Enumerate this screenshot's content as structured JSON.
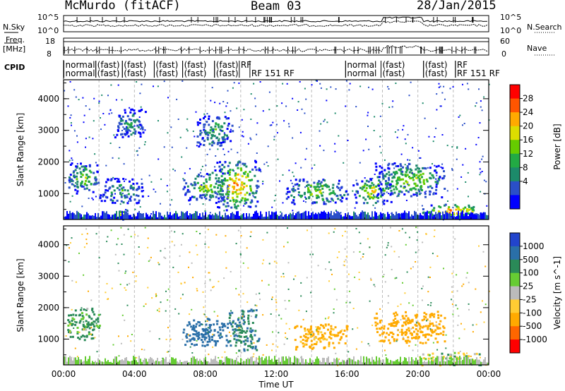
{
  "header": {
    "station": "McMurdo (fitACF)",
    "beam": "Beam 03",
    "date": "28/Jan/2015"
  },
  "status_panels": {
    "nsky_label": "N.Sky",
    "nsearch_label": "N.Search",
    "nsky_ticks": [
      "10^5",
      "10^0"
    ],
    "nsearch_ticks": [
      "10^5",
      "10^0"
    ],
    "freq_label": "Freq.",
    "freq_unit": "[MHz]",
    "freq_ticks": [
      "18",
      "8"
    ],
    "nave_label": "Nave",
    "nave_ticks": [
      "60",
      "0"
    ],
    "cpid_label": "CPID"
  },
  "cpid_rows": [
    {
      "row": 0,
      "segments": [
        {
          "hour": 0.1,
          "text": "normal"
        },
        {
          "hour": 1.9,
          "text": "(fast)"
        },
        {
          "hour": 3.4,
          "text": "(fast)"
        },
        {
          "hour": 5.2,
          "text": "(fast)"
        },
        {
          "hour": 6.8,
          "text": "(fast)"
        },
        {
          "hour": 8.6,
          "text": "(fast)"
        },
        {
          "hour": 10.0,
          "text": "RF"
        },
        {
          "hour": 16.0,
          "text": "normal"
        },
        {
          "hour": 18.0,
          "text": "(fast)"
        },
        {
          "hour": 20.4,
          "text": "(fast)"
        },
        {
          "hour": 22.2,
          "text": "RF"
        }
      ]
    },
    {
      "row": 1,
      "segments": [
        {
          "hour": 0.1,
          "text": "normal"
        },
        {
          "hour": 1.9,
          "text": "(fast)"
        },
        {
          "hour": 3.4,
          "text": "(fast)"
        },
        {
          "hour": 5.2,
          "text": "(fast)"
        },
        {
          "hour": 6.8,
          "text": "(fast)"
        },
        {
          "hour": 8.6,
          "text": "(fast)"
        },
        {
          "hour": 10.6,
          "text": "RF 151 RF"
        },
        {
          "hour": 16.0,
          "text": "normal"
        },
        {
          "hour": 18.0,
          "text": "(fast)"
        },
        {
          "hour": 20.4,
          "text": "(fast)"
        },
        {
          "hour": 22.2,
          "text": "RF 151 RF"
        }
      ]
    }
  ],
  "chart_data": [
    {
      "type": "heatmap",
      "title": "Power",
      "xlabel": "",
      "ylabel": "Slant Range [km]",
      "xlim_hours": [
        0,
        24
      ],
      "ylim": [
        180,
        4600
      ],
      "yticks": [
        1000,
        2000,
        3000,
        4000
      ],
      "colorbar_label": "Power [dB]",
      "colorbar_ticks": [
        "28",
        "24",
        "20",
        "16",
        "12",
        "8",
        "4"
      ],
      "colorbar_colors": [
        "#ff0000",
        "#ff5500",
        "#ffaa00",
        "#dddd00",
        "#66cc00",
        "#22aa44",
        "#1c8a6a",
        "#2a4fc8",
        "#0000ff"
      ],
      "series": [
        {
          "x": [
            0.2,
            2.0
          ],
          "y": [
            1000,
            2000
          ],
          "intensity": 0.55
        },
        {
          "x": [
            2.0,
            4.5
          ],
          "y": [
            700,
            1500
          ],
          "intensity": 0.4
        },
        {
          "x": [
            2.8,
            4.6
          ],
          "y": [
            2800,
            3700
          ],
          "intensity": 0.35
        },
        {
          "x": [
            6.7,
            9.3
          ],
          "y": [
            800,
            1700
          ],
          "intensity": 0.55
        },
        {
          "x": [
            8.5,
            11.0
          ],
          "y": [
            500,
            2100
          ],
          "intensity": 0.85
        },
        {
          "x": [
            7.5,
            9.5
          ],
          "y": [
            2500,
            3500
          ],
          "intensity": 0.45
        },
        {
          "x": [
            12.5,
            16.0
          ],
          "y": [
            700,
            1500
          ],
          "intensity": 0.6
        },
        {
          "x": [
            16.3,
            18.5
          ],
          "y": [
            700,
            1500
          ],
          "intensity": 0.7
        },
        {
          "x": [
            17.5,
            21.5
          ],
          "y": [
            900,
            2000
          ],
          "intensity": 0.6
        },
        {
          "x": [
            20.0,
            23.8
          ],
          "y": [
            250,
            700
          ],
          "intensity": 0.85
        },
        {
          "x": [
            3.0,
            3.6
          ],
          "y": [
            200,
            500
          ],
          "intensity": 0.9
        }
      ]
    },
    {
      "type": "heatmap",
      "title": "Velocity",
      "xlabel": "Time UT",
      "ylabel": "Slant Range [km]",
      "xlim_hours": [
        0,
        24
      ],
      "ylim": [
        180,
        4600
      ],
      "yticks": [
        1000,
        2000,
        3000,
        4000
      ],
      "xticks": [
        "00:00",
        "04:00",
        "08:00",
        "12:00",
        "16:00",
        "20:00",
        "00:00"
      ],
      "colorbar_label": "Velocity [m s^-1]",
      "colorbar_ticks": [
        "1000",
        "500",
        "100",
        "25",
        "-25",
        "-100",
        "-500",
        "-1000"
      ],
      "colorbar_colors": [
        "#2244cc",
        "#2a6fa8",
        "#2a8a58",
        "#66cc33",
        "#bbbbbb",
        "#ffcc33",
        "#ffaa00",
        "#ff6600",
        "#ff0000"
      ],
      "series": [
        {
          "x": [
            0.2,
            2.0
          ],
          "y": [
            1000,
            2000
          ],
          "velocity": 120
        },
        {
          "x": [
            6.7,
            9.3
          ],
          "y": [
            800,
            1700
          ],
          "velocity": 400
        },
        {
          "x": [
            9.3,
            11.0
          ],
          "y": [
            600,
            2000
          ],
          "velocity": 300
        },
        {
          "x": [
            13.0,
            16.0
          ],
          "y": [
            700,
            1500
          ],
          "velocity": -150
        },
        {
          "x": [
            17.5,
            21.5
          ],
          "y": [
            900,
            1900
          ],
          "velocity": -200
        },
        {
          "x": [
            20.0,
            23.8
          ],
          "y": [
            200,
            600
          ],
          "velocity": 0
        }
      ]
    }
  ]
}
